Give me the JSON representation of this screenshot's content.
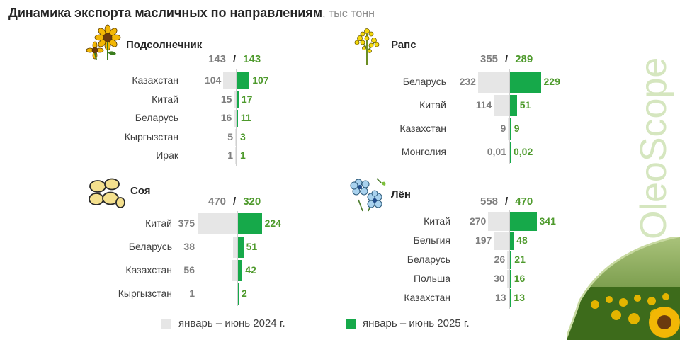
{
  "title": "Динамика экспорта масличных по направлениям",
  "unit": ", тыс тонн",
  "brand": "OleoScope",
  "colors": {
    "prev": "#e6e6e6",
    "curr": "#16a94a"
  },
  "legend": {
    "prev": "январь – июнь 2024 г.",
    "curr": "январь – июнь 2025 г."
  },
  "chart_data": [
    {
      "type": "bar",
      "title": "Подсолнечник",
      "icon": "sunflower-icon",
      "totals": {
        "prev": "143",
        "sep": "/",
        "curr": "143"
      },
      "categories": [
        "Казахстан",
        "Китай",
        "Беларусь",
        "Кыргызстан",
        "Ирак"
      ],
      "series": [
        {
          "name": "январь – июнь 2024 г.",
          "values": [
            104,
            15,
            16,
            5,
            1
          ],
          "labels": [
            "104",
            "15",
            "16",
            "5",
            "1"
          ]
        },
        {
          "name": "январь – июнь 2025 г.",
          "values": [
            107,
            17,
            11,
            3,
            1
          ],
          "labels": [
            "107",
            "17",
            "11",
            "3",
            "1"
          ]
        }
      ]
    },
    {
      "type": "bar",
      "title": "Рапс",
      "icon": "rapeseed-icon",
      "totals": {
        "prev": "355",
        "sep": "/",
        "curr": "289"
      },
      "categories": [
        "Беларусь",
        "Китай",
        "Казахстан",
        "Монголия"
      ],
      "series": [
        {
          "name": "январь – июнь 2024 г.",
          "values": [
            232,
            114,
            9,
            0.01
          ],
          "labels": [
            "232",
            "114",
            "9",
            "0,01"
          ]
        },
        {
          "name": "январь – июнь 2025 г.",
          "values": [
            229,
            51,
            9,
            0.02
          ],
          "labels": [
            "229",
            "51",
            "9",
            "0,02"
          ]
        }
      ]
    },
    {
      "type": "bar",
      "title": "Соя",
      "icon": "soybean-icon",
      "totals": {
        "prev": "470",
        "sep": "/",
        "curr": "320"
      },
      "categories": [
        "Китай",
        "Беларусь",
        "Казахстан",
        "Кыргызстан"
      ],
      "series": [
        {
          "name": "январь – июнь 2024 г.",
          "values": [
            375,
            38,
            56,
            1
          ],
          "labels": [
            "375",
            "38",
            "56",
            "1"
          ]
        },
        {
          "name": "январь – июнь 2025 г.",
          "values": [
            224,
            51,
            42,
            2
          ],
          "labels": [
            "224",
            "51",
            "42",
            "2"
          ]
        }
      ]
    },
    {
      "type": "bar",
      "title": "Лён",
      "icon": "flax-icon",
      "totals": {
        "prev": "558",
        "sep": "/",
        "curr": "470"
      },
      "categories": [
        "Китай",
        "Бельгия",
        "Беларусь",
        "Польша",
        "Казахстан"
      ],
      "series": [
        {
          "name": "январь – июнь 2024 г.",
          "values": [
            270,
            197,
            26,
            30,
            13
          ],
          "labels": [
            "270",
            "197",
            "26",
            "30",
            "13"
          ]
        },
        {
          "name": "январь – июнь 2025 г.",
          "values": [
            341,
            48,
            21,
            16,
            13
          ],
          "labels": [
            "341",
            "48",
            "21",
            "16",
            "13"
          ]
        }
      ]
    }
  ]
}
